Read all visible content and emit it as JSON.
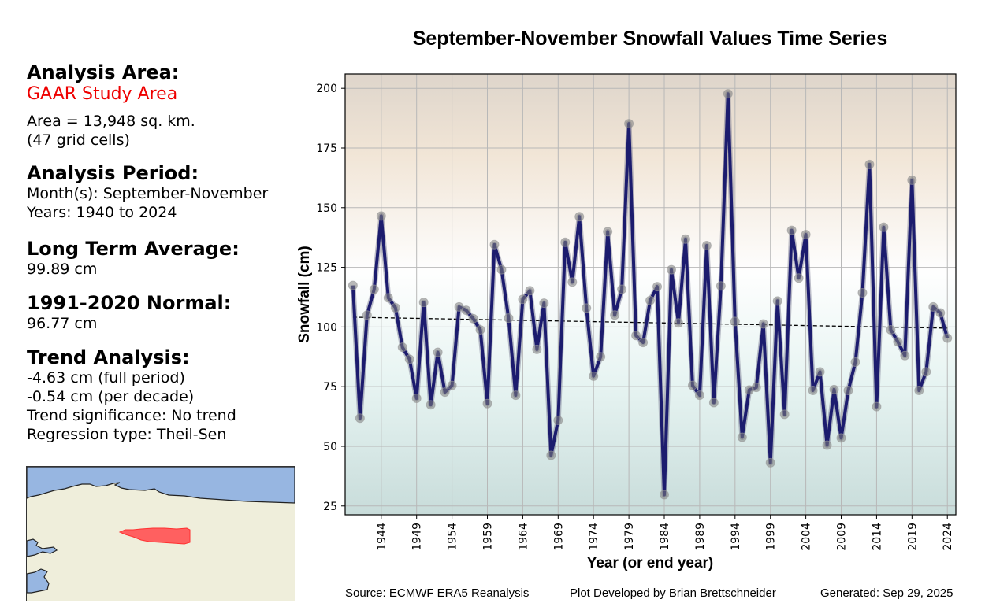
{
  "info": {
    "analysis_area_heading": "Analysis Area:",
    "area_name": "GAAR Study Area",
    "area_size": "Area = 13,948 sq. km.",
    "grid_cells": "(47 grid cells)",
    "analysis_period_heading": "Analysis Period:",
    "months": "Month(s): September-November",
    "years": "Years: 1940 to 2024",
    "long_term_avg_heading": "Long Term Average:",
    "long_term_avg_value": "99.89 cm",
    "normal_heading": "1991-2020 Normal:",
    "normal_value": "96.77 cm",
    "trend_heading": "Trend Analysis:",
    "trend_full": "-4.63 cm (full period)",
    "trend_decade": "-0.54 cm (per decade)",
    "trend_significance": "Trend significance: No trend",
    "regression_type": "Regression type: Theil-Sen"
  },
  "footer": {
    "source": "Source: ECMWF ERA5 Reanalysis",
    "developer": "Plot Developed by Brian Brettschneider",
    "generated": "Generated: Sep 29, 2025"
  },
  "colors": {
    "line": "#1c1c6e",
    "marker": "#808080",
    "highlight_area": "#ff4444",
    "area_name": "#ee0000",
    "ocean": "#97b6e1",
    "land": "#efeedb"
  },
  "chart_data": {
    "type": "line",
    "title": "September-November Snowfall Values Time Series",
    "xlabel": "Year (or end year)",
    "ylabel": "Snowfall (cm)",
    "xlim": [
      1938.9,
      2025.2
    ],
    "ylim": [
      21.3,
      206
    ],
    "grid": true,
    "x_ticks": [
      1944,
      1949,
      1954,
      1959,
      1964,
      1969,
      1974,
      1979,
      1984,
      1989,
      1994,
      1999,
      2004,
      2009,
      2014,
      2019,
      2024
    ],
    "y_ticks": [
      25,
      50,
      75,
      100,
      125,
      150,
      175,
      200
    ],
    "x": [
      1940,
      1941,
      1942,
      1943,
      1944,
      1945,
      1946,
      1947,
      1948,
      1949,
      1950,
      1951,
      1952,
      1953,
      1954,
      1955,
      1956,
      1957,
      1958,
      1959,
      1960,
      1961,
      1962,
      1963,
      1964,
      1965,
      1966,
      1967,
      1968,
      1969,
      1970,
      1971,
      1972,
      1973,
      1974,
      1975,
      1976,
      1977,
      1978,
      1979,
      1980,
      1981,
      1982,
      1983,
      1984,
      1985,
      1986,
      1987,
      1988,
      1989,
      1990,
      1991,
      1992,
      1993,
      1994,
      1995,
      1996,
      1997,
      1998,
      1999,
      2000,
      2001,
      2002,
      2003,
      2004,
      2005,
      2006,
      2007,
      2008,
      2009,
      2010,
      2011,
      2012,
      2013,
      2014,
      2015,
      2016,
      2017,
      2018,
      2019,
      2020,
      2021,
      2022,
      2023,
      2024
    ],
    "series": [
      {
        "name": "Snowfall",
        "values": [
          117.4,
          61.8,
          105.0,
          115.8,
          146.5,
          112.2,
          108.1,
          91.5,
          86.5,
          70.1,
          110.3,
          67.4,
          89.4,
          72.7,
          75.5,
          108.4,
          107.0,
          103.5,
          98.8,
          67.9,
          134.5,
          124.0,
          103.7,
          71.4,
          111.6,
          115.2,
          90.6,
          110.0,
          46.2,
          60.9,
          135.5,
          118.8,
          146.2,
          107.9,
          79.4,
          87.5,
          139.9,
          105.0,
          115.8,
          185.2,
          96.4,
          93.5,
          111.1,
          116.9,
          29.7,
          124.0,
          101.7,
          136.8,
          75.5,
          71.4,
          134.1,
          68.3,
          117.2,
          197.7,
          102.3,
          53.8,
          73.6,
          74.7,
          101.3,
          43.1,
          110.9,
          63.4,
          140.5,
          120.5,
          138.7,
          73.4,
          81.2,
          50.5,
          73.8,
          53.5,
          73.4,
          85.3,
          114.3,
          168.1,
          66.6,
          141.8,
          98.8,
          93.8,
          88.0,
          161.5,
          73.4,
          81.2,
          108.4,
          105.9,
          95.3
        ]
      }
    ],
    "trend_line": {
      "name": "Theil-Sen trend",
      "start": [
        1940,
        104.1
      ],
      "end": [
        2024,
        99.5
      ]
    }
  }
}
